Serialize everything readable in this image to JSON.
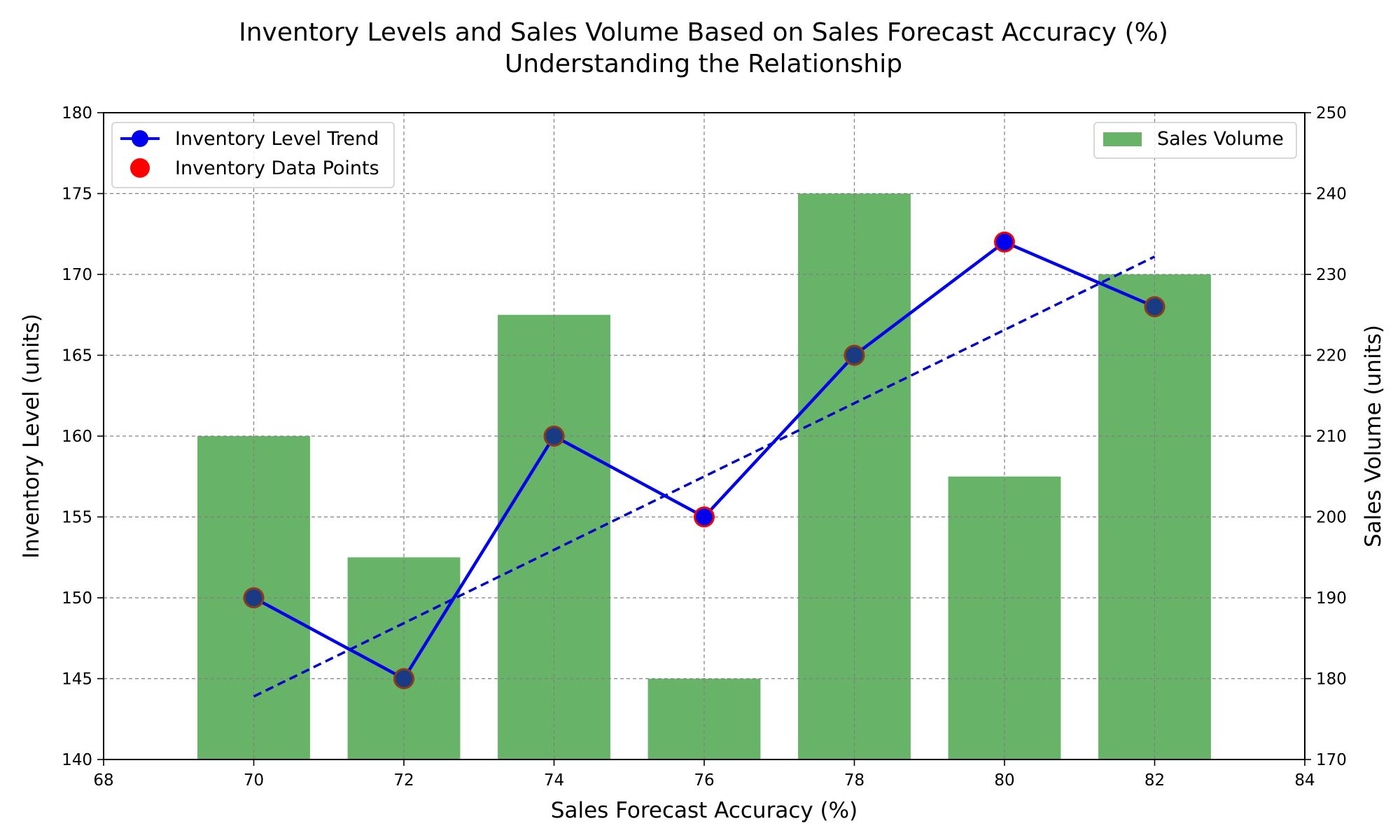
{
  "chart_data": {
    "type": "bar+line",
    "title": "Inventory Levels and Sales Volume Based on Sales Forecast Accuracy (%)",
    "subtitle": "Understanding the Relationship",
    "xlabel": "Sales Forecast Accuracy (%)",
    "ylabel_left": "Inventory Level (units)",
    "ylabel_right": "Sales Volume (units)",
    "xlim": [
      68,
      84
    ],
    "ylim_left": [
      140,
      180
    ],
    "ylim_right": [
      170,
      250
    ],
    "x_ticks": [
      "68",
      "70",
      "72",
      "74",
      "76",
      "78",
      "80",
      "82",
      "84"
    ],
    "y_left_ticks": [
      "140",
      "145",
      "150",
      "155",
      "160",
      "165",
      "170",
      "175",
      "180"
    ],
    "y_right_ticks": [
      "170",
      "180",
      "190",
      "200",
      "210",
      "220",
      "230",
      "240",
      "250"
    ],
    "grid": true,
    "x": [
      70,
      72,
      74,
      76,
      78,
      80,
      82
    ],
    "series": [
      {
        "name": "Sales Volume",
        "type": "bar",
        "axis": "right",
        "color": "#4ca64c",
        "values": [
          210,
          195,
          225,
          180,
          240,
          205,
          230
        ]
      },
      {
        "name": "Inventory Level Trend",
        "type": "line",
        "axis": "left",
        "color": "#0000ee",
        "values": [
          150,
          145,
          160,
          155,
          165,
          172,
          168
        ]
      },
      {
        "name": "Inventory Data Points",
        "type": "scatter",
        "axis": "left",
        "color": "#ff0000",
        "values": [
          150,
          145,
          160,
          155,
          165,
          172,
          168
        ]
      },
      {
        "type": "trendline",
        "axis": "left",
        "color": "#0000cc",
        "x": [
          70,
          82
        ],
        "values": [
          143.9,
          171.1
        ]
      }
    ],
    "legends": [
      {
        "placement": "upper-left",
        "entries": [
          "Inventory Level Trend",
          "Inventory Data Points"
        ]
      },
      {
        "placement": "upper-right",
        "entries": [
          "Sales Volume"
        ]
      }
    ]
  }
}
